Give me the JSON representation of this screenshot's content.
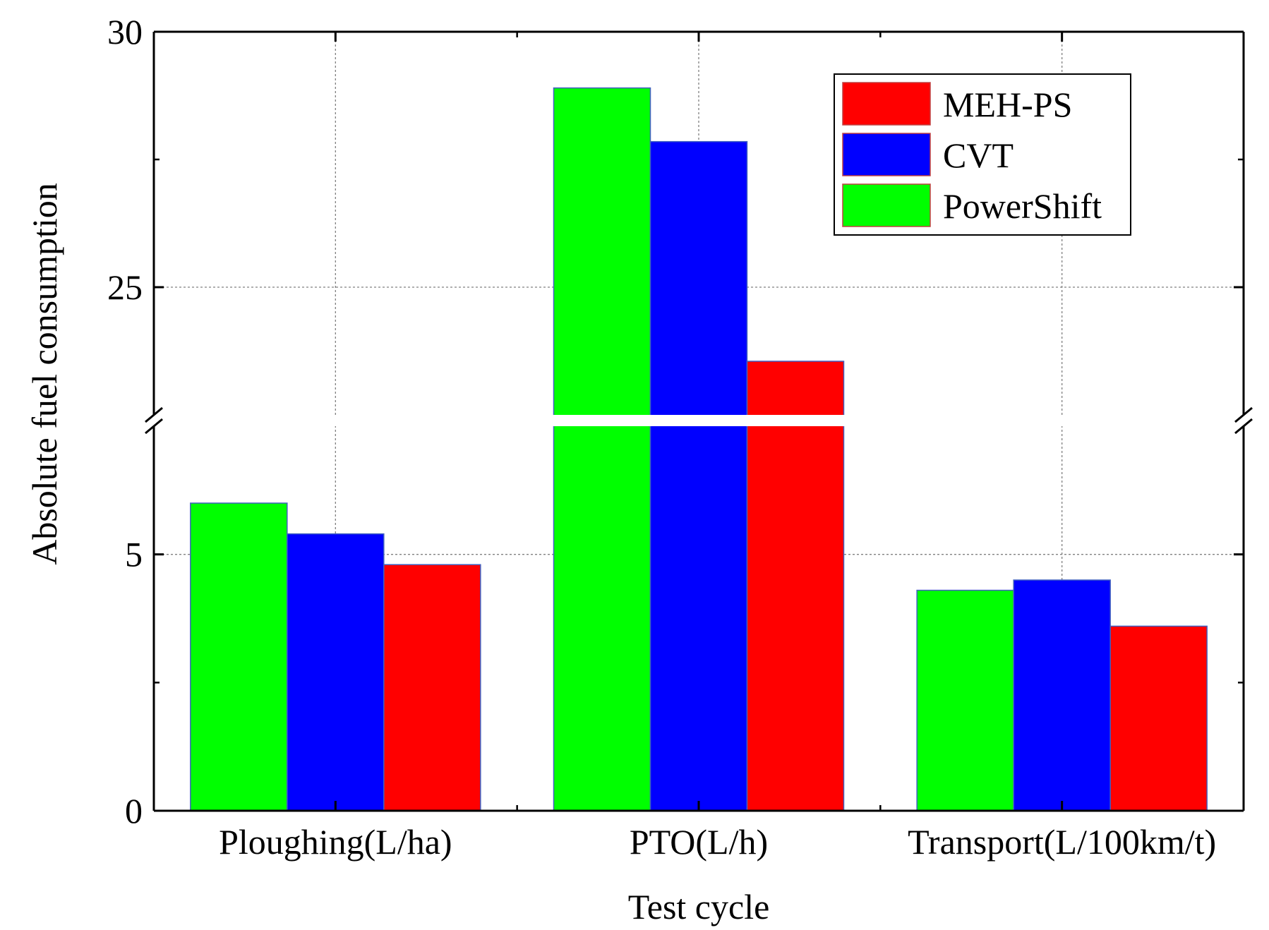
{
  "chart_data": {
    "type": "bar",
    "title": "",
    "xlabel": "Test cycle",
    "ylabel": "Absolute fuel consumption",
    "categories": [
      "Ploughing(L/ha)",
      "PTO(L/h)",
      "Transport(L/100km/t)"
    ],
    "series": [
      {
        "name": "PowerShift",
        "color": "#00ff00",
        "values": [
          6.0,
          28.9,
          4.3
        ]
      },
      {
        "name": "CVT",
        "color": "#0000ff",
        "values": [
          5.4,
          27.85,
          4.5
        ]
      },
      {
        "name": "MEH-PS",
        "color": "#ff0000",
        "values": [
          4.8,
          23.55,
          3.6
        ]
      }
    ],
    "legend_order": [
      "MEH-PS",
      "CVT",
      "PowerShift"
    ],
    "legend_position": "top-right",
    "y_axis_break": true,
    "lower_segment": {
      "ylim": [
        0,
        7.5
      ],
      "ticks": [
        "0",
        "5"
      ],
      "minor_ticks": [
        2.5
      ]
    },
    "upper_segment": {
      "ylim": [
        22.5,
        30
      ],
      "ticks": [
        "25",
        "30"
      ],
      "minor_ticks": [
        27.5
      ]
    },
    "grid": true
  }
}
